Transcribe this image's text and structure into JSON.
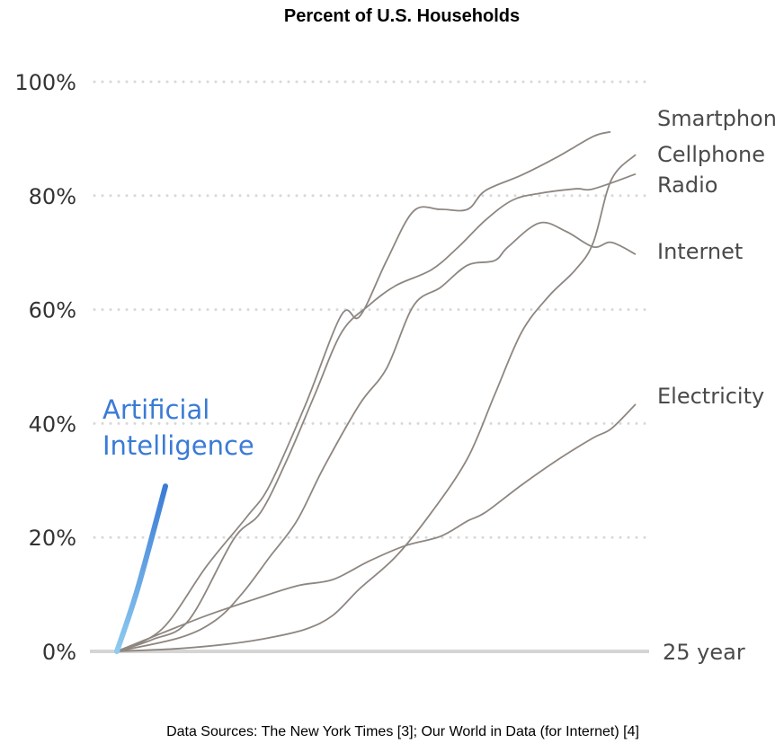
{
  "chart_data": {
    "type": "line",
    "title": "Percent of U.S. Households",
    "xlabel": "",
    "ylabel": "",
    "x_end_label": "25 year",
    "xlim": [
      0,
      25
    ],
    "ylim": [
      0,
      100
    ],
    "yticks": [
      0,
      20,
      40,
      60,
      80,
      100
    ],
    "ytick_labels": [
      "0%",
      "20%",
      "40%",
      "60%",
      "80%",
      "100%"
    ],
    "grid": "horizontal dotted",
    "legend": "direct labels at line ends (right)",
    "colors": {
      "tech": "#8e8680",
      "ai_start": "#8ecbf0",
      "ai_end": "#3a7bd5",
      "grid": "#d8d8d8",
      "baseline": "#d5d5d5"
    },
    "series": [
      {
        "name": "Smartphone",
        "x": [
          0,
          2.17,
          4.33,
          6.28,
          7.37,
          9.1,
          10.83,
          11.7,
          13.0,
          14.3,
          15.6,
          16.9,
          17.76,
          19.5,
          21.23,
          22.96,
          23.79
        ],
        "y": [
          0,
          3.9,
          15.0,
          23.7,
          29.2,
          43.4,
          59.1,
          58.8,
          68.6,
          77.3,
          77.6,
          77.6,
          80.9,
          83.6,
          86.8,
          90.4,
          91.2
        ]
      },
      {
        "name": "Cellphone",
        "x": [
          0,
          3.03,
          5.63,
          7.37,
          9.1,
          10.4,
          11.7,
          13.43,
          15.16,
          16.9,
          18.2,
          19.5,
          20.8,
          22.1,
          22.96,
          23.83,
          25
        ],
        "y": [
          0,
          0.5,
          1.4,
          2.4,
          3.9,
          6.3,
          11.0,
          16.6,
          24.4,
          33.9,
          45.0,
          56.0,
          62.3,
          67.0,
          71.8,
          82.8,
          87.2
        ]
      },
      {
        "name": "Radio",
        "x": [
          0,
          1.73,
          3.47,
          5.63,
          6.93,
          8.23,
          9.53,
          10.83,
          12.13,
          13.43,
          15.16,
          16.46,
          17.76,
          19.06,
          20.36,
          22.1,
          22.96,
          25
        ],
        "y": [
          0,
          2.1,
          5.5,
          19.7,
          24.4,
          33.9,
          45.0,
          56.0,
          60.7,
          64.2,
          67.0,
          71.0,
          75.7,
          79.2,
          80.4,
          81.2,
          81.2,
          83.8
        ]
      },
      {
        "name": "Internet",
        "x": [
          0,
          3.03,
          4.77,
          6.07,
          7.37,
          8.67,
          9.97,
          11.7,
          13.0,
          14.3,
          15.6,
          16.9,
          18.2,
          18.85,
          20.36,
          21.66,
          22.96,
          23.83,
          25
        ],
        "y": [
          0,
          2.4,
          5.5,
          10.3,
          16.6,
          22.9,
          32.3,
          43.4,
          49.7,
          60.7,
          63.9,
          67.8,
          68.6,
          71.0,
          75.2,
          73.7,
          71.0,
          71.8,
          69.7
        ]
      },
      {
        "name": "Electricity",
        "x": [
          0,
          2.17,
          4.33,
          6.5,
          8.67,
          10.4,
          12.13,
          13.86,
          15.6,
          16.9,
          17.76,
          19.5,
          21.23,
          22.96,
          23.83,
          25
        ],
        "y": [
          0,
          3.2,
          6.3,
          9.0,
          11.5,
          12.6,
          15.8,
          18.5,
          20.2,
          22.9,
          24.4,
          29.2,
          33.6,
          37.5,
          39.1,
          43.4
        ]
      },
      {
        "name": "Artificial Intelligence",
        "x": [
          0,
          1.0,
          2.34
        ],
        "y": [
          0,
          11,
          29
        ]
      }
    ]
  },
  "footer": "Data Sources: The New York Times [3]; Our World in Data (for Internet) [4]"
}
